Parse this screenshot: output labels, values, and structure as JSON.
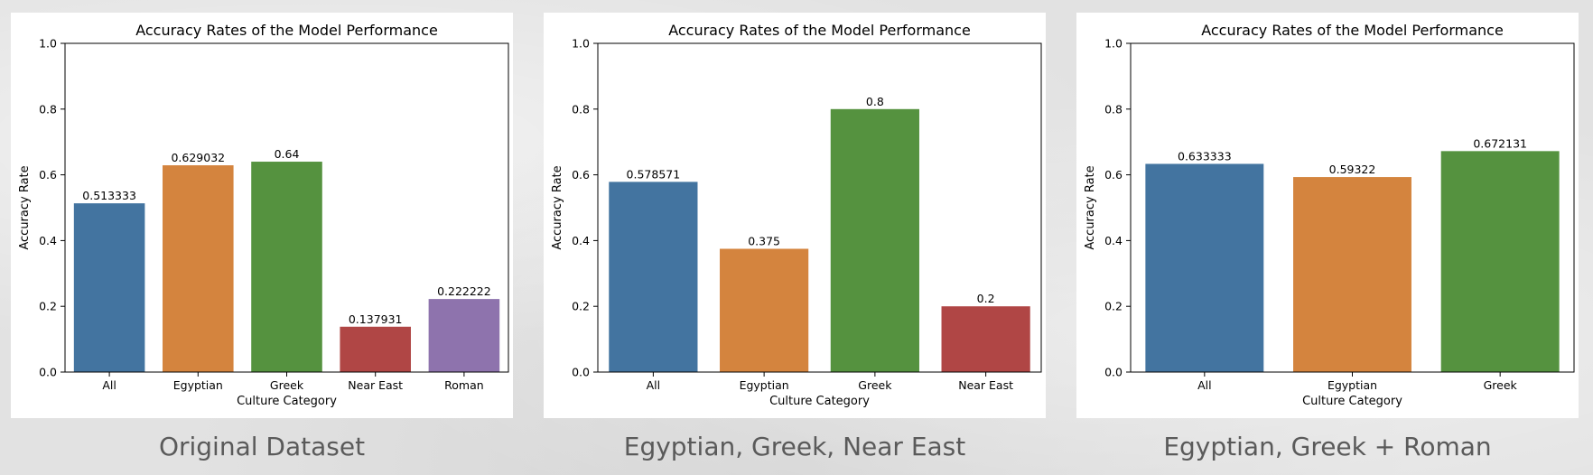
{
  "panels": [
    {
      "caption": "Original Dataset",
      "chart_data": {
        "type": "bar",
        "title": "Accuracy Rates of the Model Performance",
        "xlabel": "Culture Category",
        "ylabel": "Accuracy Rate",
        "ylim": [
          0,
          1.0
        ],
        "yticks": [
          "0.0",
          "0.2",
          "0.4",
          "0.6",
          "0.8",
          "1.0"
        ],
        "categories": [
          "All",
          "Egyptian",
          "Greek",
          "Near East",
          "Roman"
        ],
        "values": [
          0.513333,
          0.629032,
          0.64,
          0.137931,
          0.222222
        ],
        "value_labels": [
          "0.513333",
          "0.629032",
          "0.64",
          "0.137931",
          "0.222222"
        ],
        "colors": [
          "#4374a0",
          "#d4843e",
          "#55923f",
          "#b04645",
          "#8e73ad"
        ],
        "grid": false,
        "legend": "none"
      }
    },
    {
      "caption": "Egyptian, Greek, Near East",
      "chart_data": {
        "type": "bar",
        "title": "Accuracy Rates of the Model Performance",
        "xlabel": "Culture Category",
        "ylabel": "Accuracy Rate",
        "ylim": [
          0,
          1.0
        ],
        "yticks": [
          "0.0",
          "0.2",
          "0.4",
          "0.6",
          "0.8",
          "1.0"
        ],
        "categories": [
          "All",
          "Egyptian",
          "Greek",
          "Near East"
        ],
        "values": [
          0.578571,
          0.375,
          0.8,
          0.2
        ],
        "value_labels": [
          "0.578571",
          "0.375",
          "0.8",
          "0.2"
        ],
        "colors": [
          "#4374a0",
          "#d4843e",
          "#55923f",
          "#b04645"
        ],
        "grid": false,
        "legend": "none"
      }
    },
    {
      "caption": "Egyptian, Greek + Roman",
      "chart_data": {
        "type": "bar",
        "title": "Accuracy Rates of the Model Performance",
        "xlabel": "Culture Category",
        "ylabel": "Accuracy Rate",
        "ylim": [
          0,
          1.0
        ],
        "yticks": [
          "0.0",
          "0.2",
          "0.4",
          "0.6",
          "0.8",
          "1.0"
        ],
        "categories": [
          "All",
          "Egyptian",
          "Greek"
        ],
        "values": [
          0.633333,
          0.59322,
          0.672131
        ],
        "value_labels": [
          "0.633333",
          "0.59322",
          "0.672131"
        ],
        "colors": [
          "#4374a0",
          "#d4843e",
          "#55923f"
        ],
        "grid": false,
        "legend": "none"
      }
    }
  ]
}
